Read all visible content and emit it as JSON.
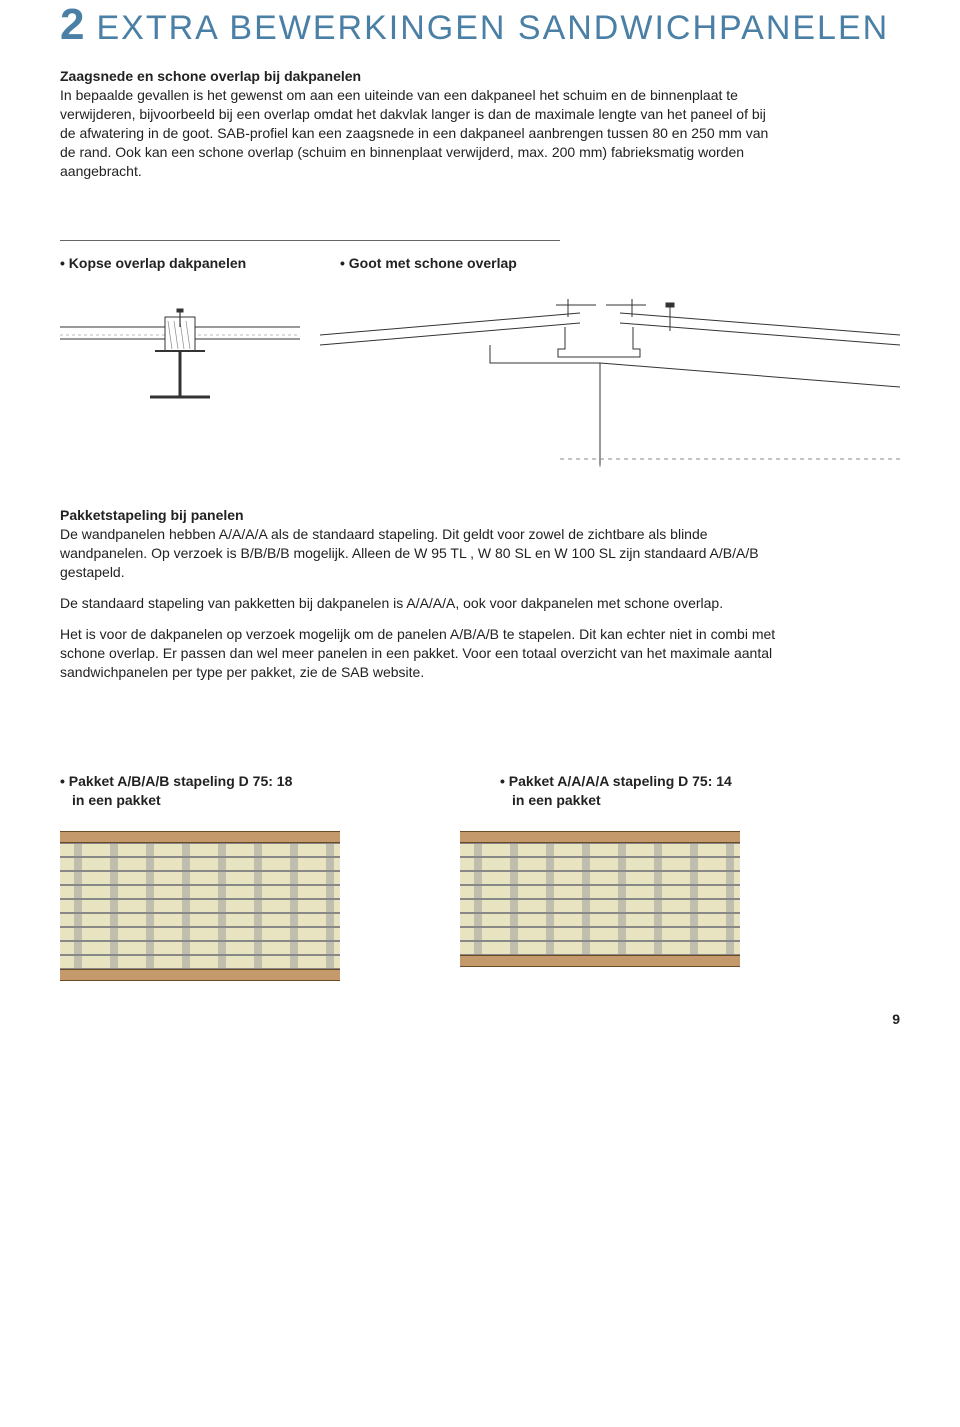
{
  "colors": {
    "accent": "#4a7fa6",
    "text": "#222222",
    "rule": "#666666",
    "pallet": "#c49a6c",
    "pallet_edge": "#6b4a26",
    "panel_fill": "#e8e3c0",
    "panel_line": "#888888"
  },
  "section": {
    "number": "2",
    "title": "EXTRA BEWERKINGEN SANDWICHPANELEN"
  },
  "intro": {
    "heading": "Zaagsnede en schone overlap bij dakpanelen",
    "body": "In bepaalde gevallen is het gewenst om aan een uiteinde van een dakpaneel het schuim en de binnenplaat te verwijderen, bijvoorbeeld bij een overlap omdat het dakvlak langer is dan de maximale lengte van het paneel of bij de afwatering in de goot. SAB-profiel kan een zaagsnede in een dakpaneel aanbrengen tussen 80 en 250 mm van de rand. Ook kan een schone overlap (schuim en binnenplaat verwijderd, max. 200 mm) fabrieksmatig worden aangebracht."
  },
  "diagrams1": {
    "left_caption": "Kopse overlap dakpanelen",
    "right_caption": "Goot met schone overlap"
  },
  "stapeling": {
    "heading": "Pakketstapeling bij panelen",
    "body1": "De wandpanelen hebben A/A/A/A als de standaard stapeling. Dit geldt voor zowel de zichtbare als blinde wandpanelen. Op verzoek is B/B/B/B mogelijk. Alleen de W 95 TL , W 80 SL en W 100 SL zijn standaard A/B/A/B gestapeld.",
    "body2": "De standaard stapeling van pakketten bij dakpanelen is A/A/A/A, ook voor dakpanelen met schone overlap.",
    "body3": "Het is voor de dakpanelen op verzoek mogelijk om de panelen A/B/A/B te stapelen. Dit kan echter niet in combi met schone overlap. Er passen dan wel meer panelen in een pakket. Voor een totaal overzicht van het maximale aantal sandwichpanelen per type per pakket, zie de SAB website."
  },
  "pakketten": {
    "left": {
      "line1": "Pakket A/B/A/B stapeling D 75: 18",
      "line2": "in een pakket",
      "layers": 9
    },
    "right": {
      "line1": "Pakket A/A/A/A stapeling D 75: 14",
      "line2": "in een pakket",
      "layers": 8
    }
  },
  "page_number": "9"
}
